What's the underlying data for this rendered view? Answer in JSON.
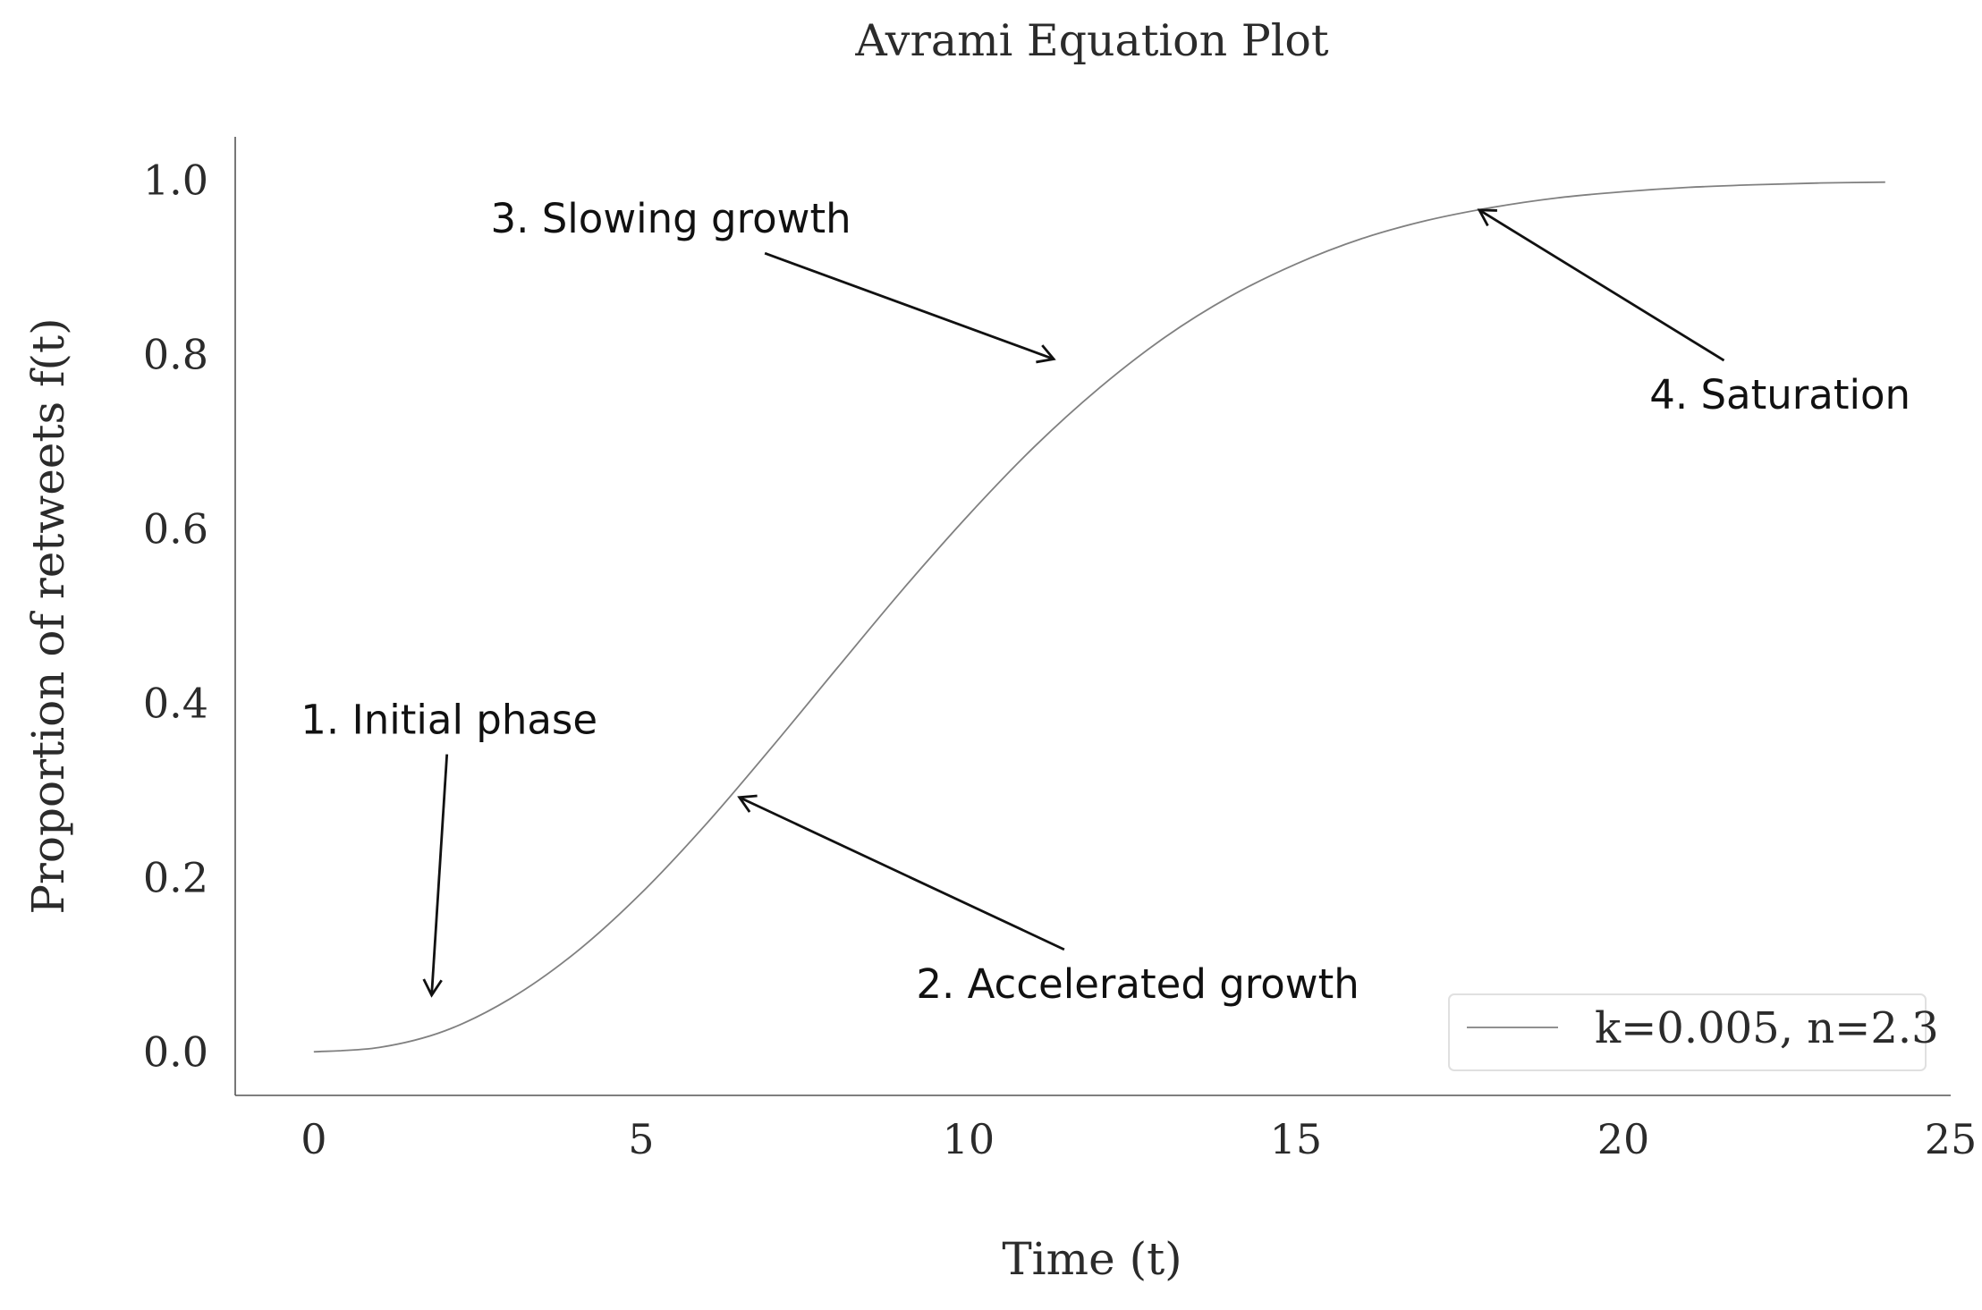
{
  "chart_data": {
    "type": "line",
    "title": "Avrami Equation Plot",
    "xlabel": "Time (t)",
    "ylabel": "Proportion of retweets f(t)",
    "xlim": [
      -1.2,
      25
    ],
    "ylim": [
      -0.05,
      1.05
    ],
    "xticks": [
      0,
      5,
      10,
      15,
      20,
      25
    ],
    "xtick_labels": [
      "0",
      "5",
      "10",
      "15",
      "20",
      "25"
    ],
    "yticks": [
      0.0,
      0.2,
      0.4,
      0.6,
      0.8,
      1.0
    ],
    "ytick_labels": [
      "0.0",
      "0.2",
      "0.4",
      "0.6",
      "0.8",
      "1.0"
    ],
    "grid": false,
    "legend_position": "lower right",
    "series": [
      {
        "name": "k=0.005, n=2.3",
        "color": "#808080",
        "x": [
          0,
          1,
          2,
          3,
          4,
          5,
          6,
          7,
          8,
          9,
          10,
          11,
          12,
          13,
          14,
          15,
          16,
          17,
          18,
          19,
          20,
          21,
          22,
          23,
          24
        ],
        "y": [
          0.0,
          0.005,
          0.024,
          0.061,
          0.114,
          0.182,
          0.262,
          0.35,
          0.441,
          0.531,
          0.616,
          0.694,
          0.762,
          0.82,
          0.867,
          0.904,
          0.933,
          0.954,
          0.969,
          0.98,
          0.987,
          0.992,
          0.995,
          0.997,
          0.998
        ]
      }
    ],
    "annotations": [
      {
        "text": "1. Initial phase",
        "x": 1.8,
        "y": 0.065,
        "text_x": -0.2,
        "text_y": 0.365
      },
      {
        "text": "2. Accelerated growth",
        "x": 6.5,
        "y": 0.292,
        "text_x": 9.2,
        "text_y": 0.062
      },
      {
        "text": "3. Slowing growth",
        "x": 11.3,
        "y": 0.795,
        "text_x": 2.7,
        "text_y": 0.94
      },
      {
        "text": "4. Saturation",
        "x": 17.8,
        "y": 0.966,
        "text_x": 20.4,
        "text_y": 0.738
      }
    ]
  }
}
